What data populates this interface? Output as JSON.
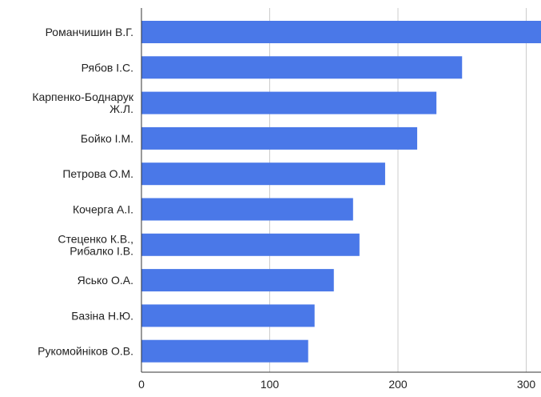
{
  "chart_data": {
    "type": "bar",
    "orientation": "horizontal",
    "categories": [
      [
        "Романчишин В.Г."
      ],
      [
        "Рябов І.С."
      ],
      [
        "Карпенко-Боднарук",
        "Ж.Л."
      ],
      [
        "Бойко І.М."
      ],
      [
        "Петрова О.М."
      ],
      [
        "Кочерга А.І."
      ],
      [
        "Стеценко К.В.,",
        "Рибалко І.В."
      ],
      [
        "Ясько О.А."
      ],
      [
        "Базіна Н.Ю."
      ],
      [
        "Рукомойніков О.В."
      ]
    ],
    "values": [
      315,
      250,
      230,
      215,
      190,
      165,
      170,
      150,
      135,
      130
    ],
    "xlim": [
      0,
      315
    ],
    "xticks": [
      0,
      100,
      200,
      300
    ],
    "xtick_labels": [
      "0",
      "100",
      "200",
      "300"
    ],
    "grid": true,
    "title": "",
    "xlabel": "",
    "ylabel": ""
  },
  "colors": {
    "bar": "#4a78e8",
    "grid": "#cccccc",
    "axis": "#333333",
    "text": "#222222"
  }
}
